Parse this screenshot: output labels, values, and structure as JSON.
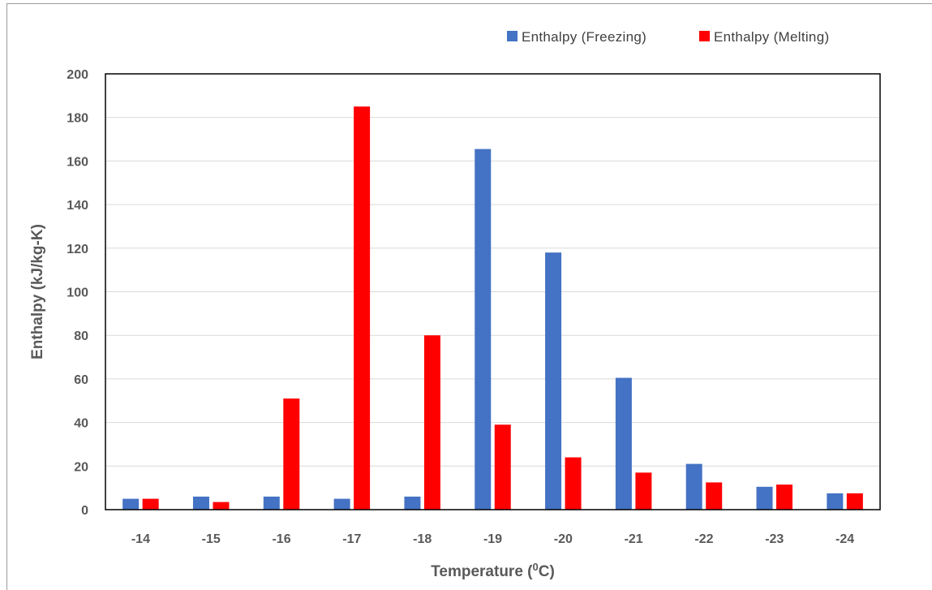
{
  "chart_data": {
    "type": "bar",
    "categories": [
      "-14",
      "-15",
      "-16",
      "-17",
      "-18",
      "-19",
      "-20",
      "-21",
      "-22",
      "-23",
      "-24"
    ],
    "series": [
      {
        "name": "Enthalpy (Freezing)",
        "color": "#4472c4",
        "values": [
          5,
          6,
          6,
          5,
          6,
          165.5,
          118,
          60.5,
          21,
          10.5,
          7.5
        ]
      },
      {
        "name": "Enthalpy (Melting)",
        "color": "#ff0000",
        "values": [
          5,
          3.5,
          51,
          185,
          80,
          39,
          24,
          17,
          12.5,
          11.5,
          7.5
        ]
      }
    ],
    "ylim": [
      0,
      200
    ],
    "yticks": [
      0,
      20,
      40,
      60,
      80,
      100,
      120,
      140,
      160,
      180,
      200
    ],
    "xlabel": "Temperature (",
    "xlabel_sup": "0",
    "xlabel_end": "C)",
    "ylabel": "Enthalpy (kJ/kg-K)",
    "grid": true,
    "legend_position": "top-right"
  }
}
